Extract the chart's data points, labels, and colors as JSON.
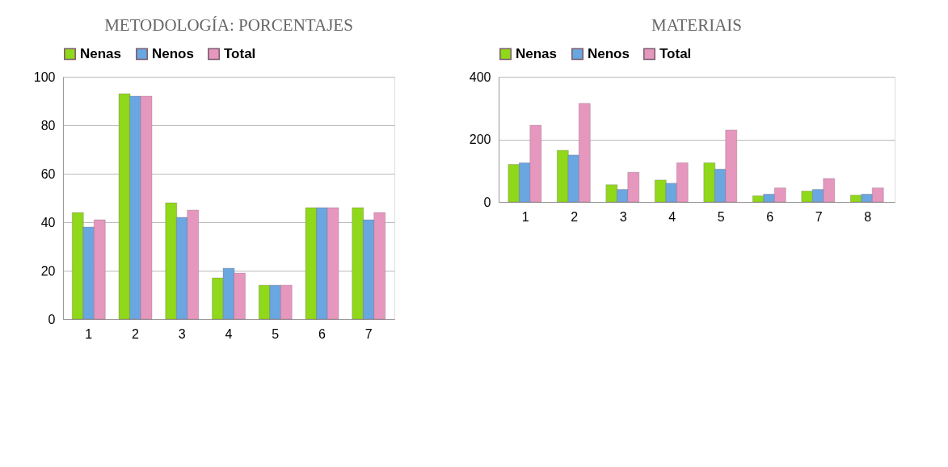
{
  "chart_data": [
    {
      "type": "bar",
      "title": "METODOLOGÍA: PORCENTAJES",
      "categories": [
        "1",
        "2",
        "3",
        "4",
        "5",
        "6",
        "7"
      ],
      "series": [
        {
          "name": "Nenas",
          "color": "#8fd81a",
          "values": [
            44,
            93,
            48,
            17,
            14,
            46,
            46
          ]
        },
        {
          "name": "Nenos",
          "color": "#6aa6e0",
          "values": [
            38,
            92,
            42,
            21,
            14,
            46,
            41
          ]
        },
        {
          "name": "Total",
          "color": "#e597be",
          "values": [
            41,
            92,
            45,
            19,
            14,
            46,
            44
          ]
        }
      ],
      "ylim": [
        0,
        100
      ],
      "yticks": [
        0,
        20,
        40,
        60,
        80,
        100
      ],
      "grid": "y",
      "legend": "top"
    },
    {
      "type": "bar",
      "title": "MATERIAIS",
      "categories": [
        "1",
        "2",
        "3",
        "4",
        "5",
        "6",
        "7",
        "8"
      ],
      "series": [
        {
          "name": "Nenas",
          "color": "#8fd81a",
          "values": [
            120,
            165,
            55,
            70,
            125,
            20,
            35,
            22
          ]
        },
        {
          "name": "Nenos",
          "color": "#6aa6e0",
          "values": [
            125,
            150,
            40,
            60,
            105,
            25,
            40,
            25
          ]
        },
        {
          "name": "Total",
          "color": "#e597be",
          "values": [
            245,
            315,
            95,
            125,
            230,
            45,
            75,
            45
          ]
        }
      ],
      "ylim": [
        0,
        400
      ],
      "yticks": [
        0,
        200,
        400
      ],
      "grid": "y",
      "legend": "top"
    }
  ]
}
